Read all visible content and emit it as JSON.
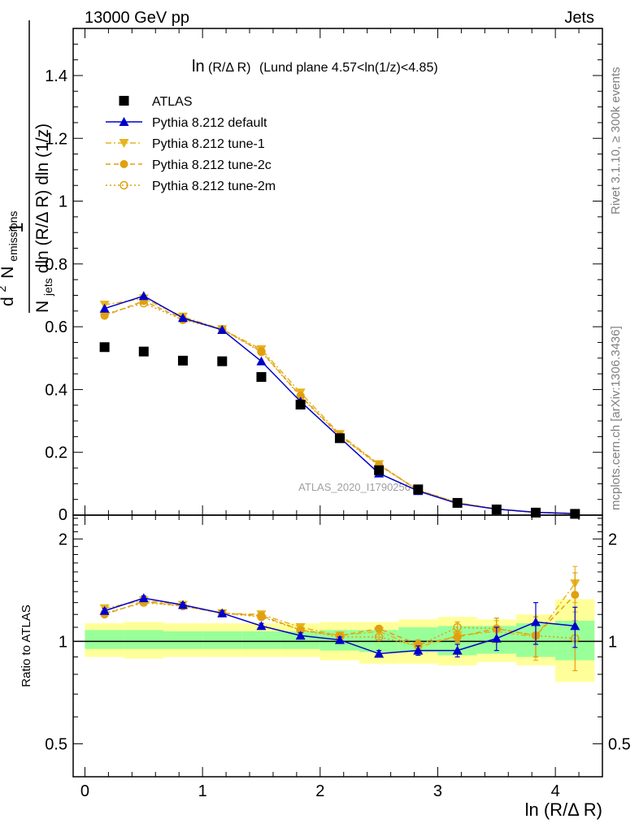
{
  "header": {
    "left": "13000 GeV pp",
    "right": "Jets"
  },
  "side_labels": {
    "rivet": "Rivet 3.1.10, ≥ 300k events",
    "mcplots": "mcplots.cern.ch [arXiv:1306.3436]"
  },
  "plot_title_parts": {
    "main": "ln",
    "arg": "(R/Δ R)",
    "rest": "(Lund plane 4.57<ln(1/z)<4.85)"
  },
  "watermark": "ATLAS_2020_I1790256",
  "ylabel": {
    "num_prefix": "d",
    "num_sup": "2",
    "num_N": "N",
    "num_sub": "emissions",
    "den_N": "N",
    "den_sub": "jets",
    "den_rest": "dln (R/Δ R) dln (1/z)",
    "one": "1"
  },
  "ratio_ylabel": "Ratio to ATLAS",
  "xlabel": "ln (R/Δ R)",
  "legend": [
    {
      "label": "ATLAS",
      "color": "#000000",
      "marker": "square",
      "dash": "none"
    },
    {
      "label": "Pythia 8.212 default",
      "color": "#0000cc",
      "marker": "triangle-up",
      "dash": "solid"
    },
    {
      "label": "Pythia 8.212 tune-1",
      "color": "#e6b41e",
      "marker": "triangle-down",
      "dash": "dashdot"
    },
    {
      "label": "Pythia 8.212 tune-2c",
      "color": "#e0a010",
      "marker": "circle",
      "dash": "dash"
    },
    {
      "label": "Pythia 8.212 tune-2m",
      "color": "#e0a010",
      "marker": "circle-open",
      "dash": "dot"
    }
  ],
  "chart_data": {
    "type": "line",
    "title": "ln(R/Δ R) (Lund plane 4.57<ln(1/z)<4.85)",
    "x_edges": [
      0.0,
      0.333,
      0.667,
      1.0,
      1.333,
      1.667,
      2.0,
      2.333,
      2.667,
      3.0,
      3.333,
      3.667,
      4.0,
      4.333
    ],
    "x": [
      0.167,
      0.5,
      0.833,
      1.167,
      1.5,
      1.833,
      2.167,
      2.5,
      2.833,
      3.167,
      3.5,
      3.833,
      4.167
    ],
    "xlim": [
      -0.1,
      4.4
    ],
    "main": {
      "ylim": [
        0,
        1.55
      ],
      "yticks": [
        {
          "v": 0.2,
          "label": "0.2"
        },
        {
          "v": 0.4,
          "label": "0.4"
        },
        {
          "v": 0.6,
          "label": "0.6"
        },
        {
          "v": 0.8,
          "label": "0.8"
        },
        {
          "v": 1.0,
          "label": "1"
        },
        {
          "v": 1.2,
          "label": "1.2"
        },
        {
          "v": 1.4,
          "label": "1.4"
        }
      ],
      "series": [
        {
          "name": "ATLAS",
          "values": [
            0.535,
            0.521,
            0.492,
            0.49,
            0.44,
            0.352,
            0.245,
            0.143,
            0.082,
            0.039,
            0.018,
            0.008,
            0.004
          ]
        },
        {
          "name": "Pythia 8.212 default",
          "values": [
            0.658,
            0.698,
            0.628,
            0.59,
            0.49,
            0.362,
            0.247,
            0.133,
            0.077,
            0.037,
            0.019,
            0.009,
            0.0045
          ]
        },
        {
          "name": "Pythia 8.212 tune-1",
          "values": [
            0.67,
            0.69,
            0.632,
            0.592,
            0.528,
            0.39,
            0.258,
            0.162,
            0.078,
            0.039,
            0.02,
            0.009,
            0.006
          ]
        },
        {
          "name": "Pythia 8.212 tune-2c",
          "values": [
            0.635,
            0.682,
            0.625,
            0.592,
            0.522,
            0.38,
            0.254,
            0.16,
            0.08,
            0.04,
            0.019,
            0.0085,
            0.0058
          ]
        },
        {
          "name": "Pythia 8.212 tune-2m",
          "values": [
            0.64,
            0.675,
            0.622,
            0.592,
            0.52,
            0.378,
            0.252,
            0.158,
            0.08,
            0.04,
            0.019,
            0.0085,
            0.0042
          ]
        }
      ]
    },
    "ratio": {
      "ylim": [
        0.4,
        2.35
      ],
      "log": true,
      "yticks": [
        {
          "v": 0.5,
          "label": "0.5"
        },
        {
          "v": 1.0,
          "label": "1"
        },
        {
          "v": 2.0,
          "label": "2"
        }
      ],
      "band_stat_lo": [
        0.95,
        0.95,
        0.95,
        0.95,
        0.95,
        0.95,
        0.94,
        0.93,
        0.93,
        0.91,
        0.92,
        0.9,
        0.88
      ],
      "band_stat_hi": [
        1.08,
        1.08,
        1.07,
        1.07,
        1.07,
        1.07,
        1.08,
        1.08,
        1.1,
        1.11,
        1.11,
        1.13,
        1.15
      ],
      "band_tot_lo": [
        0.9,
        0.89,
        0.9,
        0.9,
        0.9,
        0.9,
        0.88,
        0.86,
        0.86,
        0.85,
        0.87,
        0.85,
        0.76
      ],
      "band_tot_hi": [
        1.13,
        1.14,
        1.13,
        1.13,
        1.13,
        1.13,
        1.14,
        1.14,
        1.16,
        1.18,
        1.16,
        1.2,
        1.33
      ],
      "series": [
        {
          "name": "Pythia 8.212 default",
          "values": [
            1.23,
            1.34,
            1.28,
            1.21,
            1.11,
            1.04,
            1.01,
            0.92,
            0.94,
            0.94,
            1.02,
            1.14,
            1.11
          ],
          "err": [
            0.02,
            0.02,
            0.02,
            0.02,
            0.02,
            0.02,
            0.02,
            0.02,
            0.03,
            0.04,
            0.08,
            0.16,
            0.15
          ]
        },
        {
          "name": "Pythia 8.212 tune-1",
          "values": [
            1.25,
            1.32,
            1.28,
            1.21,
            1.2,
            1.1,
            1.04,
            1.07,
            0.96,
            1.04,
            1.07,
            1.03,
            1.48
          ],
          "err": [
            0.02,
            0.02,
            0.02,
            0.02,
            0.02,
            0.02,
            0.02,
            0.02,
            0.03,
            0.04,
            0.08,
            0.15,
            0.18
          ]
        },
        {
          "name": "Pythia 8.212 tune-2c",
          "values": [
            1.2,
            1.31,
            1.27,
            1.21,
            1.19,
            1.08,
            1.04,
            1.09,
            0.98,
            1.03,
            1.09,
            1.04,
            1.37
          ],
          "err": [
            0.02,
            0.02,
            0.02,
            0.02,
            0.02,
            0.02,
            0.02,
            0.02,
            0.03,
            0.04,
            0.08,
            0.14,
            0.22
          ]
        },
        {
          "name": "Pythia 8.212 tune-2m",
          "values": [
            1.21,
            1.3,
            1.27,
            1.21,
            1.18,
            1.08,
            1.03,
            1.03,
            0.97,
            1.1,
            1.09,
            1.04,
            1.02
          ],
          "err": [
            0.02,
            0.02,
            0.02,
            0.02,
            0.02,
            0.02,
            0.02,
            0.02,
            0.03,
            0.04,
            0.08,
            0.14,
            0.2
          ]
        }
      ]
    },
    "xticks": [
      {
        "v": 0,
        "label": "0"
      },
      {
        "v": 1,
        "label": "1"
      },
      {
        "v": 2,
        "label": "2"
      },
      {
        "v": 3,
        "label": "3"
      },
      {
        "v": 4,
        "label": "4"
      }
    ],
    "main_zero_label": "0",
    "xlabel": "ln (R/Δ R)",
    "ylabel": "1/N_jets d2N_emissions/dln(R/Δ R) dln(1/z)"
  }
}
